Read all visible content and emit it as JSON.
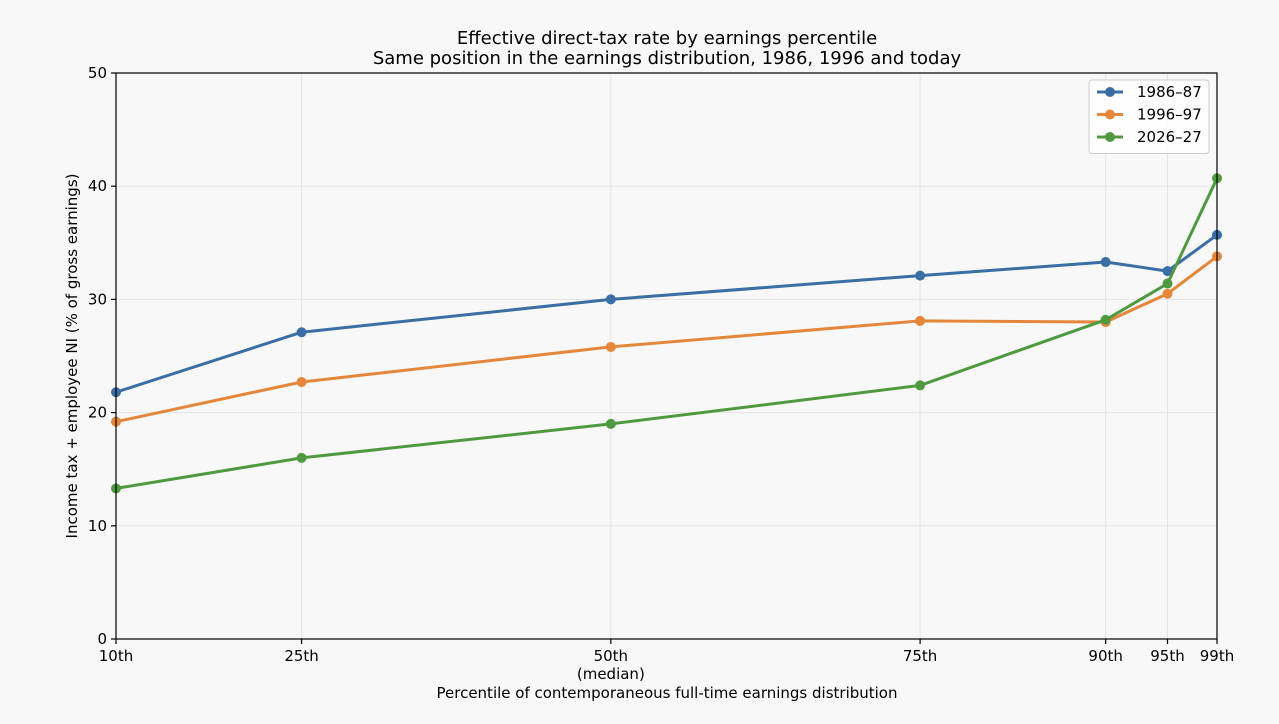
{
  "chart_data": {
    "type": "line",
    "title": "Effective direct-tax rate by earnings percentile",
    "subtitle": "Same position in the earnings distribution, 1986, 1996 and today",
    "xlabel": "Percentile of contemporaneous full-time earnings distribution",
    "ylabel": "Income tax + employee NI (% of gross earnings)",
    "x": [
      10,
      25,
      50,
      75,
      90,
      95,
      99
    ],
    "x_tick_labels": [
      "10th",
      "25th",
      "50th\n(median)",
      "75th",
      "90th",
      "95th",
      "99th"
    ],
    "xlim": [
      10,
      99
    ],
    "ylim": [
      0,
      50
    ],
    "y_ticks": [
      0,
      10,
      20,
      30,
      40,
      50
    ],
    "grid": true,
    "legend_position": "top-right",
    "series": [
      {
        "name": "1986–87",
        "color": "#3a6ea5",
        "values": [
          21.8,
          27.1,
          30.0,
          32.1,
          33.3,
          32.5,
          35.7
        ]
      },
      {
        "name": "1996–97",
        "color": "#e5873a",
        "values": [
          19.2,
          22.7,
          25.8,
          28.1,
          28.0,
          30.5,
          33.8
        ]
      },
      {
        "name": "2026–27",
        "color": "#4f9a40",
        "values": [
          13.3,
          16.0,
          19.0,
          22.4,
          28.2,
          31.4,
          40.7
        ]
      }
    ]
  }
}
